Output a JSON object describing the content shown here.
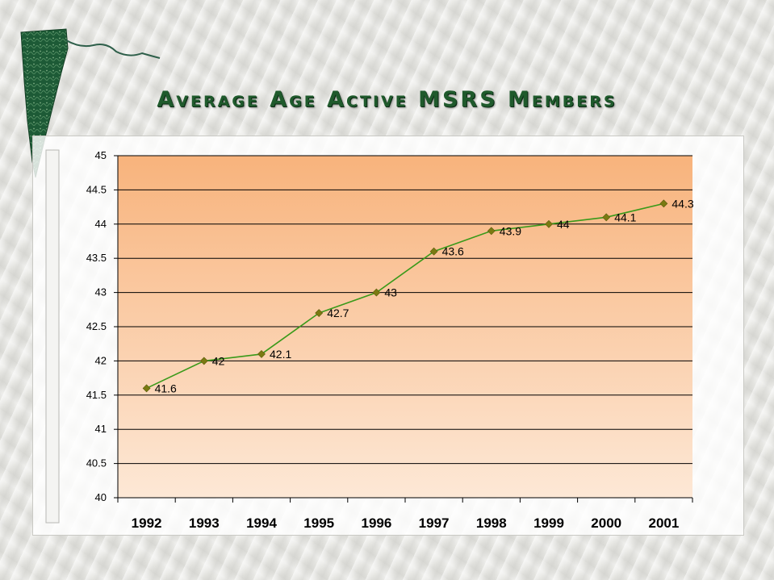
{
  "slide": {
    "title": "Average Age Active MSRS Members",
    "logo_icon": "green-state-map-icon"
  },
  "chart_data": {
    "type": "line",
    "title": "Average Age Active MSRS Members",
    "categories": [
      "1992",
      "1993",
      "1994",
      "1995",
      "1996",
      "1997",
      "1998",
      "1999",
      "2000",
      "2001"
    ],
    "series": [
      {
        "values": [
          41.6,
          42,
          42.1,
          42.7,
          43,
          43.6,
          43.9,
          44,
          44.1,
          44.3
        ],
        "color": "#3a9a1a",
        "marker_color": "#7a7a12",
        "marker": "diamond"
      }
    ],
    "data_labels": [
      "41.6",
      "42",
      "42.1",
      "42.7",
      "43",
      "43.6",
      "43.9",
      "44",
      "44.1",
      "44.3"
    ],
    "y_ticks": [
      "40",
      "40.5",
      "41",
      "41.5",
      "42",
      "42.5",
      "43",
      "43.5",
      "44",
      "44.5",
      "45"
    ],
    "ylim": [
      40,
      45
    ],
    "xlabel": "",
    "ylabel": "",
    "grid": true,
    "legend": "none",
    "plot_background": [
      "#fde8d6",
      "#f8b37c"
    ]
  }
}
